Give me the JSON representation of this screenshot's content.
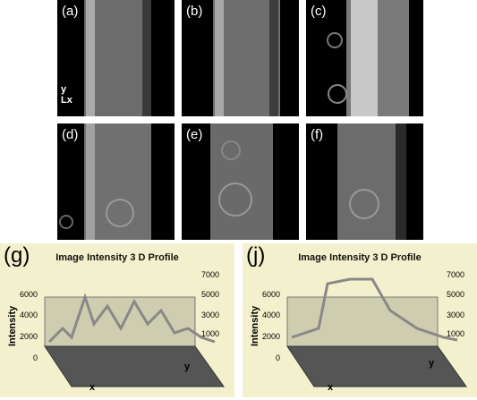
{
  "panels": {
    "a": {
      "label": "(a)"
    },
    "b": {
      "label": "(b)"
    },
    "c": {
      "label": "(c)"
    },
    "d": {
      "label": "(d)"
    },
    "e": {
      "label": "(e)"
    },
    "f": {
      "label": "(f)"
    }
  },
  "axis_indicator": {
    "y": "y",
    "x": "x"
  },
  "plots": [
    {
      "panel_label": "(g)",
      "title": "Image Intensity 3 D Profile",
      "z_label": "Intensity",
      "left_ticks": [
        "6000",
        "4000",
        "2000",
        "0"
      ],
      "right_ticks": [
        "7000",
        "5000",
        "3000",
        "1000"
      ],
      "x_label": "x",
      "y_label": "y"
    },
    {
      "panel_label": "(j)",
      "title": "Image Intensity 3 D Profile",
      "z_label": "Intensity",
      "left_ticks": [
        "6000",
        "4000",
        "2000",
        "0"
      ],
      "right_ticks": [
        "7000",
        "5000",
        "3000",
        "1000"
      ],
      "x_label": "x",
      "y_label": "y"
    }
  ],
  "colors": {
    "panel_bg": "#000000",
    "plot_bg": "#f3f1cd",
    "surface": "#8a8a8a"
  }
}
